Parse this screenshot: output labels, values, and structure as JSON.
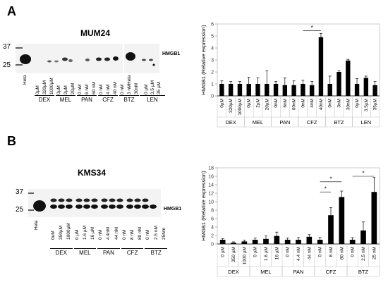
{
  "panels": [
    {
      "letter": "A",
      "blot": {
        "title": "MUM24",
        "mw_markers": [
          "37",
          "25"
        ],
        "protein_label": "HMGB1",
        "hela_label": "Hela",
        "hela2_label": "Hela",
        "lanes": [
          "0µM",
          "320µM",
          "1000µM",
          "0µM",
          "2µM",
          "20µM",
          "0 nM",
          "6 nM",
          "60 nM",
          "0 nM",
          "4 nM",
          "40 nM",
          "0 nM",
          "3 nM",
          "30nM"
        ],
        "lanes2": [
          "0 µM",
          "3.5 µM",
          "35 µM"
        ],
        "groups": [
          "DEX",
          "MEL",
          "PAN",
          "CFZ",
          "BTZ"
        ],
        "group2": "LEN"
      }
    },
    {
      "letter": "B",
      "blot": {
        "title": "KMS34",
        "mw_markers": [
          "37",
          "25"
        ],
        "protein_label": "HMGB1",
        "hela_label": "Hela",
        "lanes": [
          "0uM",
          "350µM",
          "1000µM",
          "0 µM",
          "1.6 µM",
          "16 µM",
          "0 nM",
          "4.4nM",
          "44 nM",
          "0 nM",
          "8 nM",
          "80 nM",
          "0 nM",
          "2.5 nM",
          "25Nm"
        ],
        "groups": [
          "DEX",
          "MEL",
          "PAN",
          "CFZ",
          "BTZ"
        ]
      }
    }
  ],
  "chart_data": [
    {
      "type": "bar",
      "ylabel": "HMGB1 (Relative expression)",
      "ylim": [
        0,
        6
      ],
      "yticks": [
        0,
        1,
        2,
        3,
        4,
        5,
        6
      ],
      "categories": [
        "0µM",
        "320µM",
        "1000µM",
        "0µM",
        "2µM",
        "20µM",
        "0nM",
        "6nM",
        "60nM",
        "0nM",
        "4nM",
        "40nM",
        "0nM",
        "3nM",
        "30nM",
        "0µM",
        "3.5µM",
        "35µM"
      ],
      "values": [
        1.0,
        1.0,
        1.0,
        1.0,
        1.0,
        1.0,
        1.0,
        0.9,
        0.9,
        1.0,
        0.9,
        4.9,
        1.0,
        2.0,
        2.95,
        1.0,
        1.5,
        0.9
      ],
      "errors": [
        0.25,
        0.2,
        0.2,
        0.55,
        0.5,
        1.1,
        0.2,
        0.6,
        0.35,
        0.3,
        0.3,
        0.3,
        0.65,
        0.1,
        0.1,
        0.45,
        0.15,
        0.3
      ],
      "groups": [
        {
          "label": "DEX",
          "start": 0,
          "end": 2
        },
        {
          "label": "MEL",
          "start": 3,
          "end": 5
        },
        {
          "label": "PAN",
          "start": 6,
          "end": 8
        },
        {
          "label": "CFZ",
          "start": 9,
          "end": 11
        },
        {
          "label": "BTZ",
          "start": 12,
          "end": 14
        },
        {
          "label": "LEN",
          "start": 15,
          "end": 17
        }
      ],
      "significance": [
        {
          "from": 9,
          "to": 11,
          "y": 5.45,
          "label": "*"
        }
      ]
    },
    {
      "type": "bar",
      "ylabel": "HMGB1 (Relative expression)",
      "ylim": [
        0,
        18
      ],
      "yticks": [
        0,
        2,
        4,
        6,
        8,
        10,
        12,
        14,
        16,
        18
      ],
      "categories": [
        "0 µM",
        "350 µM",
        "1000 µM",
        "0 µM",
        "1.6 µM",
        "16 µM",
        "0 nM",
        "4.4 nM",
        "44 nM",
        "0 nM",
        "8 nM",
        "80 nM",
        "0 nM",
        "2.5 nM",
        "25 nM"
      ],
      "values": [
        1.0,
        0.3,
        0.6,
        1.0,
        1.2,
        1.9,
        1.0,
        1.0,
        1.7,
        1.0,
        6.8,
        11.1,
        1.0,
        3.2,
        12.3
      ],
      "errors": [
        0.3,
        0.2,
        0.3,
        0.4,
        0.7,
        0.9,
        0.4,
        0.5,
        0.5,
        0.5,
        1.8,
        1.4,
        0.5,
        2.0,
        3.4
      ],
      "groups": [
        {
          "label": "DEX",
          "start": 0,
          "end": 2
        },
        {
          "label": "MEL",
          "start": 3,
          "end": 5
        },
        {
          "label": "PAN",
          "start": 6,
          "end": 8
        },
        {
          "label": "CFZ",
          "start": 9,
          "end": 11
        },
        {
          "label": "BTZ",
          "start": 12,
          "end": 14
        }
      ],
      "significance": [
        {
          "from": 9,
          "to": 11,
          "y": 14.7,
          "label": "*"
        },
        {
          "from": 9,
          "to": 10,
          "y": 12.3,
          "label": "*"
        },
        {
          "from": 12,
          "to": 14,
          "y": 16.0,
          "label": "*"
        }
      ]
    }
  ]
}
